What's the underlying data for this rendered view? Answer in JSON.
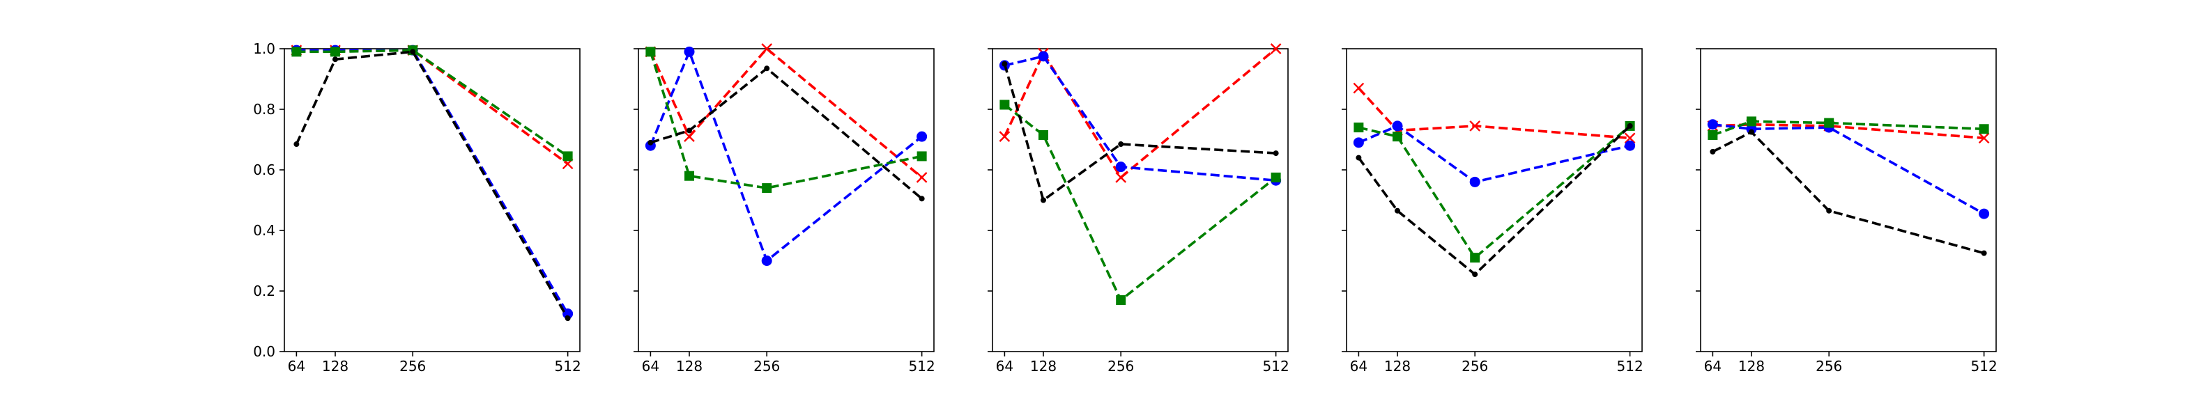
{
  "chart_data": {
    "type": "line",
    "x": [
      64,
      128,
      256,
      512
    ],
    "xticks": [
      "64",
      "128",
      "256",
      "512"
    ],
    "ylim": [
      0.0,
      1.0
    ],
    "yticks": [
      "0.0",
      "0.2",
      "0.4",
      "0.6",
      "0.8",
      "1.0"
    ],
    "grid": false,
    "legend": "none",
    "series_styles": [
      {
        "color": "#ff0000",
        "marker": "x"
      },
      {
        "color": "#0000ff",
        "marker": "circle"
      },
      {
        "color": "#008000",
        "marker": "square"
      },
      {
        "color": "#000000",
        "marker": "dot"
      }
    ],
    "panels": [
      {
        "series": [
          {
            "values": [
              0.995,
              0.995,
              0.995,
              0.62
            ]
          },
          {
            "values": [
              0.995,
              0.995,
              0.995,
              0.125
            ]
          },
          {
            "values": [
              0.99,
              0.99,
              0.995,
              0.645
            ]
          },
          {
            "values": [
              0.685,
              0.965,
              0.99,
              0.11
            ]
          }
        ]
      },
      {
        "series": [
          {
            "values": [
              0.99,
              0.71,
              1.0,
              0.575
            ]
          },
          {
            "values": [
              0.68,
              0.99,
              0.3,
              0.71
            ]
          },
          {
            "values": [
              0.99,
              0.58,
              0.54,
              0.645
            ]
          },
          {
            "values": [
              0.69,
              0.73,
              0.935,
              0.505
            ]
          }
        ]
      },
      {
        "series": [
          {
            "values": [
              0.71,
              0.985,
              0.575,
              1.0
            ]
          },
          {
            "values": [
              0.945,
              0.975,
              0.61,
              0.565
            ]
          },
          {
            "values": [
              0.815,
              0.715,
              0.17,
              0.575
            ]
          },
          {
            "values": [
              0.95,
              0.5,
              0.685,
              0.655
            ]
          }
        ]
      },
      {
        "series": [
          {
            "values": [
              0.87,
              0.73,
              0.745,
              0.705
            ]
          },
          {
            "values": [
              0.69,
              0.745,
              0.56,
              0.68
            ]
          },
          {
            "values": [
              0.74,
              0.71,
              0.31,
              0.745
            ]
          },
          {
            "values": [
              0.64,
              0.465,
              0.255,
              0.745
            ]
          }
        ]
      },
      {
        "series": [
          {
            "values": [
              0.745,
              0.75,
              0.745,
              0.705
            ]
          },
          {
            "values": [
              0.75,
              0.735,
              0.74,
              0.455
            ]
          },
          {
            "values": [
              0.715,
              0.76,
              0.755,
              0.735
            ]
          },
          {
            "values": [
              0.66,
              0.725,
              0.465,
              0.325
            ]
          }
        ]
      }
    ]
  }
}
